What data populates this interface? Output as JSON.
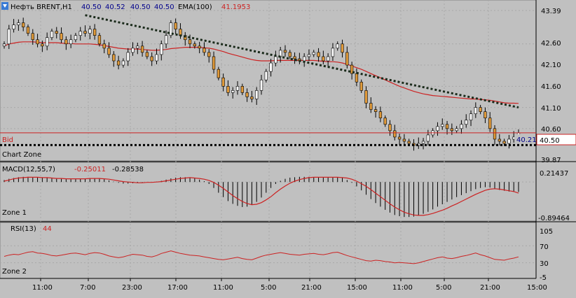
{
  "header": {
    "symbol": "Нефть BRENT,H1",
    "ohlc": [
      "40.50",
      "40.52",
      "40.50",
      "40.50"
    ],
    "ema_label": "EMA(100)",
    "ema_value": "41.1953"
  },
  "price_axis": {
    "ticks": [
      "43.39",
      "42.60",
      "42.10",
      "41.60",
      "41.10",
      "40.60",
      "39.87"
    ],
    "bid_label": "Bid",
    "bid_value": "40.50",
    "last_value": "40.21"
  },
  "zones": {
    "chart": "Chart Zone",
    "macd": "Zone 1",
    "rsi": "Zone 2"
  },
  "macd": {
    "label": "MACD(12,55,7)",
    "value1": "-0.25011",
    "value2": "-0.28538",
    "ticks": [
      "0.21437",
      "-0.89464"
    ]
  },
  "rsi": {
    "label": "RSI(13)",
    "value": "44",
    "ticks": [
      "105",
      "70",
      "30",
      "-5"
    ]
  },
  "time_axis": {
    "ticks": [
      "11:00",
      "7:00",
      "23:00",
      "17:00",
      "11:00",
      "5:00",
      "21:00",
      "15:00",
      "11:00",
      "5:00",
      "21:00",
      "15:00"
    ]
  },
  "colors": {
    "background": "#c0c0c0",
    "bull_candle": "#ffffff",
    "bear_candle": "#e09a3a",
    "ema": "#cc2222",
    "macd_signal": "#cc2222",
    "rsi_line": "#cc2222",
    "trendline": "#1a2a1a",
    "bid_line": "#cc2222",
    "support_line": "#000000"
  },
  "chart_data": [
    {
      "type": "candlestick",
      "title": "Нефть BRENT,H1",
      "ylim": [
        39.87,
        43.39
      ],
      "close": [
        42.6,
        42.95,
        43.05,
        43.1,
        43.0,
        42.85,
        42.7,
        42.6,
        42.55,
        42.75,
        42.9,
        42.85,
        42.7,
        42.6,
        42.7,
        42.8,
        42.9,
        42.85,
        42.95,
        42.8,
        42.6,
        42.5,
        42.35,
        42.2,
        42.1,
        42.2,
        42.4,
        42.5,
        42.55,
        42.4,
        42.3,
        42.2,
        42.35,
        42.6,
        42.8,
        43.1,
        42.95,
        42.8,
        42.7,
        42.6,
        42.55,
        42.5,
        42.4,
        42.3,
        42.0,
        41.8,
        41.6,
        41.45,
        41.5,
        41.6,
        41.45,
        41.35,
        41.3,
        41.5,
        41.75,
        41.95,
        42.15,
        42.3,
        42.45,
        42.4,
        42.3,
        42.25,
        42.2,
        42.3,
        42.35,
        42.4,
        42.3,
        42.2,
        42.3,
        42.5,
        42.6,
        42.4,
        42.1,
        41.9,
        41.7,
        41.5,
        41.2,
        41.05,
        41.0,
        40.85,
        40.7,
        40.55,
        40.4,
        40.35,
        40.3,
        40.25,
        40.2,
        40.25,
        40.3,
        40.45,
        40.55,
        40.65,
        40.7,
        40.6,
        40.55,
        40.6,
        40.7,
        40.8,
        40.95,
        41.1,
        41.0,
        40.85,
        40.6,
        40.35,
        40.3,
        40.25,
        40.35,
        40.4,
        40.5
      ],
      "ema100": [
        42.55,
        42.6,
        42.62,
        42.64,
        42.65,
        42.65,
        42.65,
        42.64,
        42.63,
        42.63,
        42.63,
        42.63,
        42.62,
        42.61,
        42.61,
        42.6,
        42.6,
        42.6,
        42.6,
        42.59,
        42.58,
        42.56,
        42.54,
        42.52,
        42.5,
        42.49,
        42.48,
        42.48,
        42.48,
        42.47,
        42.46,
        42.45,
        42.45,
        42.46,
        42.47,
        42.49,
        42.5,
        42.51,
        42.52,
        42.52,
        42.52,
        42.52,
        42.51,
        42.5,
        42.48,
        42.45,
        42.42,
        42.38,
        42.35,
        42.32,
        42.29,
        42.26,
        42.23,
        42.21,
        42.2,
        42.2,
        42.2,
        42.21,
        42.21,
        42.21,
        42.21,
        42.21,
        42.21,
        42.21,
        42.21,
        42.21,
        42.2,
        42.19,
        42.18,
        42.18,
        42.17,
        42.15,
        42.12,
        42.08,
        42.04,
        42.0,
        41.95,
        41.9,
        41.85,
        41.8,
        41.75,
        41.7,
        41.65,
        41.6,
        41.56,
        41.52,
        41.48,
        41.45,
        41.42,
        41.4,
        41.38,
        41.37,
        41.36,
        41.35,
        41.34,
        41.33,
        41.32,
        41.31,
        41.3,
        41.3,
        41.29,
        41.28,
        41.27,
        41.25,
        41.23,
        41.21,
        41.2,
        41.2,
        41.195
      ],
      "trendline": [
        [
          17,
          43.28
        ],
        [
          108,
          41.1
        ]
      ],
      "support": 40.21,
      "bid": 40.5
    },
    {
      "type": "histogram",
      "title": "MACD(12,55,7)",
      "ylim": [
        -0.89464,
        0.21437
      ],
      "values": [
        0.05,
        0.08,
        0.1,
        0.12,
        0.13,
        0.13,
        0.12,
        0.12,
        0.11,
        0.1,
        0.09,
        0.08,
        0.08,
        0.07,
        0.07,
        0.07,
        0.08,
        0.09,
        0.1,
        0.1,
        0.09,
        0.07,
        0.04,
        0.01,
        -0.02,
        -0.04,
        -0.04,
        -0.03,
        -0.02,
        -0.01,
        0.0,
        0.0,
        0.01,
        0.03,
        0.06,
        0.09,
        0.11,
        0.12,
        0.12,
        0.11,
        0.09,
        0.06,
        0.02,
        -0.05,
        -0.15,
        -0.27,
        -0.38,
        -0.48,
        -0.55,
        -0.6,
        -0.63,
        -0.62,
        -0.58,
        -0.5,
        -0.39,
        -0.27,
        -0.15,
        -0.05,
        0.03,
        0.08,
        0.11,
        0.12,
        0.13,
        0.13,
        0.13,
        0.12,
        0.12,
        0.11,
        0.11,
        0.12,
        0.12,
        0.1,
        0.05,
        -0.02,
        -0.11,
        -0.21,
        -0.32,
        -0.43,
        -0.53,
        -0.62,
        -0.7,
        -0.77,
        -0.83,
        -0.86,
        -0.88,
        -0.88,
        -0.87,
        -0.84,
        -0.8,
        -0.75,
        -0.69,
        -0.62,
        -0.56,
        -0.5,
        -0.44,
        -0.38,
        -0.33,
        -0.28,
        -0.23,
        -0.18,
        -0.15,
        -0.13,
        -0.14,
        -0.17,
        -0.2,
        -0.22,
        -0.24,
        -0.25,
        -0.25
      ],
      "signal": [
        0.02,
        0.05,
        0.08,
        0.1,
        0.11,
        0.12,
        0.12,
        0.12,
        0.11,
        0.11,
        0.1,
        0.09,
        0.09,
        0.08,
        0.08,
        0.08,
        0.08,
        0.08,
        0.09,
        0.09,
        0.09,
        0.08,
        0.07,
        0.05,
        0.03,
        0.01,
        0.0,
        -0.01,
        -0.02,
        -0.02,
        -0.01,
        -0.01,
        0.0,
        0.01,
        0.03,
        0.05,
        0.07,
        0.09,
        0.1,
        0.11,
        0.1,
        0.09,
        0.07,
        0.04,
        -0.01,
        -0.08,
        -0.16,
        -0.25,
        -0.34,
        -0.42,
        -0.49,
        -0.54,
        -0.57,
        -0.56,
        -0.52,
        -0.45,
        -0.37,
        -0.27,
        -0.18,
        -0.1,
        -0.03,
        0.02,
        0.06,
        0.09,
        0.11,
        0.12,
        0.12,
        0.12,
        0.12,
        0.12,
        0.12,
        0.11,
        0.1,
        0.07,
        0.02,
        -0.04,
        -0.11,
        -0.19,
        -0.28,
        -0.37,
        -0.46,
        -0.55,
        -0.63,
        -0.7,
        -0.76,
        -0.8,
        -0.83,
        -0.84,
        -0.84,
        -0.82,
        -0.79,
        -0.75,
        -0.71,
        -0.66,
        -0.6,
        -0.55,
        -0.49,
        -0.43,
        -0.37,
        -0.31,
        -0.26,
        -0.21,
        -0.18,
        -0.17,
        -0.18,
        -0.2,
        -0.22,
        -0.24,
        -0.28
      ]
    },
    {
      "type": "line",
      "title": "RSI(13)",
      "ylim": [
        -5,
        105
      ],
      "levels": [
        30,
        70
      ],
      "values": [
        45,
        48,
        50,
        49,
        52,
        55,
        56,
        53,
        52,
        50,
        47,
        46,
        48,
        50,
        52,
        53,
        51,
        49,
        52,
        54,
        53,
        50,
        46,
        44,
        42,
        44,
        47,
        50,
        49,
        48,
        45,
        44,
        47,
        52,
        55,
        58,
        55,
        52,
        50,
        48,
        47,
        46,
        44,
        42,
        40,
        38,
        37,
        39,
        41,
        43,
        40,
        38,
        37,
        41,
        45,
        48,
        50,
        52,
        54,
        52,
        50,
        49,
        48,
        50,
        51,
        52,
        50,
        49,
        51,
        54,
        55,
        51,
        47,
        44,
        41,
        38,
        35,
        34,
        36,
        35,
        33,
        32,
        30,
        31,
        30,
        29,
        28,
        30,
        33,
        36,
        39,
        42,
        44,
        41,
        40,
        42,
        45,
        47,
        50,
        53,
        49,
        46,
        42,
        38,
        37,
        36,
        39,
        41,
        44
      ]
    }
  ]
}
